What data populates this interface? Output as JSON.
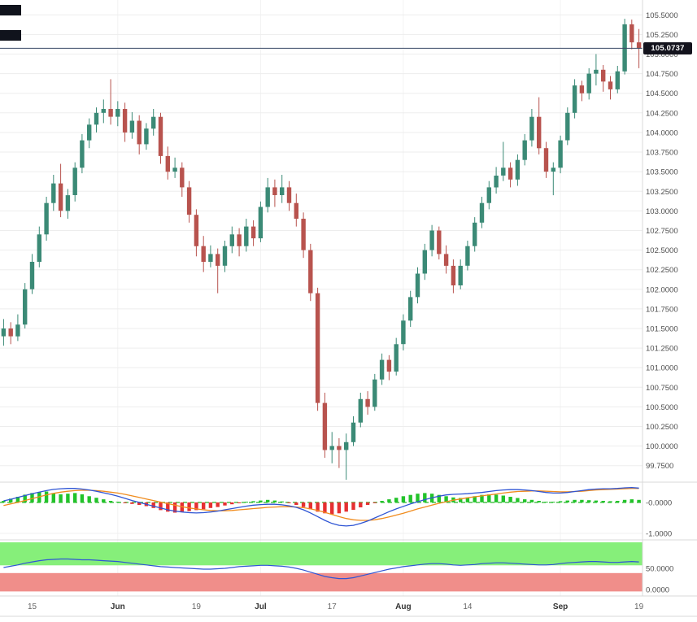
{
  "chart_data": {
    "type": "candlestick",
    "title": "",
    "colors": {
      "candle_up": "#3b8a76",
      "candle_down": "#b8534e",
      "hist_up": "#22c32a",
      "hist_down": "#e53030",
      "macd_line": "#2f55d4",
      "signal_line": "#f08c1e",
      "macd_zero": "#3dbb3d",
      "osc_line": "#2f55d4",
      "green_band": "#86ef7a",
      "red_band": "#f08e8a",
      "price_line": "#3a4a66",
      "grid": "#ededed"
    },
    "price_axis": {
      "min": 99.55,
      "max": 105.69,
      "ticks": [
        "105.5000",
        "105.2500",
        "105.0000",
        "104.7500",
        "104.5000",
        "104.2500",
        "104.0000",
        "103.7500",
        "103.5000",
        "103.2500",
        "103.0000",
        "102.7500",
        "102.5000",
        "102.2500",
        "102.0000",
        "101.7500",
        "101.5000",
        "101.2500",
        "101.0000",
        "100.7500",
        "100.5000",
        "100.2500",
        "100.0000",
        "99.7500"
      ]
    },
    "current_price": {
      "value": 105.0737,
      "label": "105.0737"
    },
    "time_axis": {
      "ticks": [
        {
          "i": 4,
          "label": "15",
          "major": false
        },
        {
          "i": 16,
          "label": "Jun",
          "major": true
        },
        {
          "i": 27,
          "label": "19",
          "major": false
        },
        {
          "i": 36,
          "label": "Jul",
          "major": true
        },
        {
          "i": 46,
          "label": "17",
          "major": false
        },
        {
          "i": 56,
          "label": "Aug",
          "major": true
        },
        {
          "i": 65,
          "label": "14",
          "major": false
        },
        {
          "i": 78,
          "label": "Sep",
          "major": true
        },
        {
          "i": 89,
          "label": "19",
          "major": false
        }
      ]
    },
    "candles": [
      [
        101.4,
        101.62,
        101.28,
        101.5
      ],
      [
        101.5,
        101.58,
        101.3,
        101.4
      ],
      [
        101.4,
        101.68,
        101.34,
        101.55
      ],
      [
        101.55,
        102.08,
        101.5,
        102.0
      ],
      [
        102.0,
        102.45,
        101.94,
        102.35
      ],
      [
        102.35,
        102.8,
        102.28,
        102.7
      ],
      [
        102.7,
        103.18,
        102.62,
        103.1
      ],
      [
        103.1,
        103.46,
        103.0,
        103.35
      ],
      [
        103.35,
        103.6,
        102.92,
        103.0
      ],
      [
        103.0,
        103.28,
        102.9,
        103.2
      ],
      [
        103.2,
        103.62,
        103.12,
        103.55
      ],
      [
        103.55,
        103.98,
        103.48,
        103.9
      ],
      [
        103.9,
        104.18,
        103.8,
        104.1
      ],
      [
        104.1,
        104.32,
        104.0,
        104.25
      ],
      [
        104.25,
        104.42,
        104.12,
        104.3
      ],
      [
        104.3,
        104.68,
        104.1,
        104.2
      ],
      [
        104.2,
        104.4,
        104.08,
        104.3
      ],
      [
        104.3,
        104.38,
        103.88,
        104.0
      ],
      [
        104.0,
        104.26,
        103.92,
        104.15
      ],
      [
        104.15,
        104.22,
        103.72,
        103.85
      ],
      [
        103.85,
        104.12,
        103.78,
        104.05
      ],
      [
        104.05,
        104.3,
        103.96,
        104.2
      ],
      [
        104.2,
        104.25,
        103.6,
        103.7
      ],
      [
        103.7,
        103.82,
        103.4,
        103.5
      ],
      [
        103.5,
        103.68,
        103.42,
        103.55
      ],
      [
        103.55,
        103.62,
        103.18,
        103.3
      ],
      [
        103.3,
        103.38,
        102.85,
        102.95
      ],
      [
        102.95,
        103.02,
        102.42,
        102.55
      ],
      [
        102.55,
        102.68,
        102.22,
        102.35
      ],
      [
        102.35,
        102.56,
        102.28,
        102.45
      ],
      [
        102.45,
        102.52,
        101.95,
        102.3
      ],
      [
        102.3,
        102.62,
        102.22,
        102.55
      ],
      [
        102.55,
        102.8,
        102.46,
        102.7
      ],
      [
        102.7,
        102.78,
        102.42,
        102.55
      ],
      [
        102.55,
        102.9,
        102.48,
        102.8
      ],
      [
        102.8,
        102.88,
        102.55,
        102.65
      ],
      [
        102.65,
        103.12,
        102.6,
        103.05
      ],
      [
        103.05,
        103.42,
        102.98,
        103.3
      ],
      [
        103.3,
        103.4,
        103.05,
        103.2
      ],
      [
        103.2,
        103.46,
        103.1,
        103.3
      ],
      [
        103.3,
        103.38,
        103.0,
        103.1
      ],
      [
        103.1,
        103.22,
        102.8,
        102.9
      ],
      [
        102.9,
        102.98,
        102.4,
        102.5
      ],
      [
        102.5,
        102.58,
        101.85,
        101.95
      ],
      [
        101.95,
        102.02,
        100.45,
        100.55
      ],
      [
        100.55,
        100.68,
        99.85,
        99.95
      ],
      [
        99.95,
        100.18,
        99.78,
        100.0
      ],
      [
        100.0,
        100.1,
        99.72,
        99.95
      ],
      [
        99.95,
        100.16,
        99.57,
        100.05
      ],
      [
        100.05,
        100.38,
        100.0,
        100.3
      ],
      [
        100.3,
        100.68,
        100.24,
        100.6
      ],
      [
        100.6,
        100.7,
        100.4,
        100.5
      ],
      [
        100.5,
        100.92,
        100.45,
        100.85
      ],
      [
        100.85,
        101.18,
        100.78,
        101.1
      ],
      [
        101.1,
        101.16,
        100.84,
        100.95
      ],
      [
        100.95,
        101.38,
        100.9,
        101.3
      ],
      [
        101.3,
        101.68,
        101.22,
        101.6
      ],
      [
        101.6,
        101.98,
        101.52,
        101.9
      ],
      [
        101.9,
        102.28,
        101.82,
        102.2
      ],
      [
        102.2,
        102.58,
        102.12,
        102.5
      ],
      [
        102.5,
        102.82,
        102.42,
        102.75
      ],
      [
        102.75,
        102.8,
        102.38,
        102.45
      ],
      [
        102.45,
        102.56,
        102.2,
        102.3
      ],
      [
        102.3,
        102.38,
        101.95,
        102.05
      ],
      [
        102.05,
        102.38,
        102.0,
        102.3
      ],
      [
        102.3,
        102.62,
        102.24,
        102.55
      ],
      [
        102.55,
        102.92,
        102.48,
        102.85
      ],
      [
        102.85,
        103.18,
        102.78,
        103.1
      ],
      [
        103.1,
        103.38,
        103.02,
        103.3
      ],
      [
        103.3,
        103.56,
        103.22,
        103.45
      ],
      [
        103.45,
        103.88,
        103.38,
        103.55
      ],
      [
        103.55,
        103.62,
        103.3,
        103.4
      ],
      [
        103.4,
        103.72,
        103.32,
        103.65
      ],
      [
        103.65,
        103.98,
        103.58,
        103.9
      ],
      [
        103.9,
        104.3,
        103.82,
        104.2
      ],
      [
        104.2,
        104.45,
        103.72,
        103.8
      ],
      [
        103.8,
        103.88,
        103.42,
        103.5
      ],
      [
        103.5,
        103.62,
        103.2,
        103.55
      ],
      [
        103.55,
        103.96,
        103.48,
        103.9
      ],
      [
        103.9,
        104.32,
        103.84,
        104.25
      ],
      [
        104.25,
        104.68,
        104.18,
        104.6
      ],
      [
        104.6,
        104.66,
        104.4,
        104.5
      ],
      [
        104.5,
        104.82,
        104.42,
        104.75
      ],
      [
        104.75,
        105.0,
        104.6,
        104.8
      ],
      [
        104.8,
        104.86,
        104.52,
        104.65
      ],
      [
        104.65,
        104.72,
        104.42,
        104.55
      ],
      [
        104.55,
        104.85,
        104.5,
        104.78
      ],
      [
        104.78,
        105.45,
        104.74,
        105.38
      ],
      [
        105.38,
        105.44,
        105.06,
        105.15
      ],
      [
        105.15,
        105.32,
        104.82,
        105.07
      ]
    ],
    "macd": {
      "min": -1.13,
      "max": 0.6,
      "ticks": [
        {
          "value": 0,
          "label": "-0.0000"
        },
        {
          "value": -1,
          "label": "-1.0000"
        }
      ],
      "histogram": [
        0.05,
        0.12,
        0.18,
        0.25,
        0.3,
        0.33,
        0.35,
        0.3,
        0.26,
        0.28,
        0.3,
        0.26,
        0.2,
        0.15,
        0.1,
        0.05,
        0.02,
        -0.02,
        -0.05,
        -0.08,
        -0.12,
        -0.18,
        -0.25,
        -0.3,
        -0.33,
        -0.3,
        -0.28,
        -0.25,
        -0.22,
        -0.18,
        -0.15,
        -0.1,
        -0.06,
        -0.03,
        0.02,
        0.04,
        0.06,
        0.08,
        0.06,
        0.03,
        -0.02,
        -0.08,
        -0.15,
        -0.22,
        -0.3,
        -0.35,
        -0.38,
        -0.35,
        -0.3,
        -0.24,
        -0.16,
        -0.08,
        -0.02,
        0.05,
        0.1,
        0.15,
        0.2,
        0.24,
        0.28,
        0.3,
        0.28,
        0.24,
        0.2,
        0.16,
        0.14,
        0.16,
        0.2,
        0.24,
        0.26,
        0.25,
        0.22,
        0.18,
        0.14,
        0.1,
        0.08,
        0.05,
        0.02,
        0.02,
        0.04,
        0.06,
        0.08,
        0.08,
        0.07,
        0.06,
        0.05,
        0.04,
        0.05,
        0.08,
        0.1,
        0.08
      ],
      "macd_line": [
        0.05,
        0.1,
        0.16,
        0.22,
        0.28,
        0.33,
        0.38,
        0.42,
        0.44,
        0.45,
        0.45,
        0.43,
        0.4,
        0.36,
        0.31,
        0.26,
        0.2,
        0.13,
        0.06,
        0.0,
        -0.06,
        -0.12,
        -0.18,
        -0.24,
        -0.28,
        -0.31,
        -0.33,
        -0.34,
        -0.33,
        -0.31,
        -0.28,
        -0.24,
        -0.2,
        -0.16,
        -0.12,
        -0.09,
        -0.07,
        -0.06,
        -0.06,
        -0.08,
        -0.11,
        -0.16,
        -0.24,
        -0.34,
        -0.46,
        -0.58,
        -0.68,
        -0.74,
        -0.76,
        -0.74,
        -0.68,
        -0.6,
        -0.5,
        -0.4,
        -0.3,
        -0.21,
        -0.13,
        -0.05,
        0.02,
        0.09,
        0.15,
        0.2,
        0.24,
        0.26,
        0.27,
        0.28,
        0.3,
        0.32,
        0.35,
        0.38,
        0.4,
        0.41,
        0.41,
        0.4,
        0.38,
        0.35,
        0.32,
        0.3,
        0.3,
        0.32,
        0.35,
        0.38,
        0.41,
        0.43,
        0.44,
        0.44,
        0.45,
        0.47,
        0.48,
        0.46
      ],
      "signal_line": [
        -0.1,
        -0.05,
        0.0,
        0.06,
        0.12,
        0.18,
        0.24,
        0.29,
        0.33,
        0.36,
        0.38,
        0.39,
        0.39,
        0.38,
        0.36,
        0.33,
        0.3,
        0.26,
        0.21,
        0.16,
        0.11,
        0.06,
        0.01,
        -0.04,
        -0.09,
        -0.14,
        -0.18,
        -0.21,
        -0.24,
        -0.26,
        -0.27,
        -0.27,
        -0.26,
        -0.24,
        -0.22,
        -0.2,
        -0.18,
        -0.16,
        -0.15,
        -0.14,
        -0.14,
        -0.15,
        -0.17,
        -0.21,
        -0.26,
        -0.32,
        -0.39,
        -0.46,
        -0.52,
        -0.56,
        -0.58,
        -0.58,
        -0.56,
        -0.52,
        -0.47,
        -0.41,
        -0.35,
        -0.28,
        -0.21,
        -0.15,
        -0.09,
        -0.03,
        0.02,
        0.07,
        0.11,
        0.15,
        0.18,
        0.21,
        0.24,
        0.27,
        0.3,
        0.33,
        0.35,
        0.36,
        0.37,
        0.37,
        0.36,
        0.35,
        0.34,
        0.34,
        0.35,
        0.36,
        0.38,
        0.4,
        0.41,
        0.42,
        0.43,
        0.44,
        0.45,
        0.45
      ]
    },
    "oscillator": {
      "min": -11,
      "max": 111,
      "ticks": [
        {
          "value": 50,
          "label": "50.0000"
        },
        {
          "value": 0,
          "label": "0.0000"
        }
      ],
      "green_band": [
        57,
        111
      ],
      "red_band": [
        -4,
        39
      ],
      "values": [
        52,
        55,
        58,
        62,
        65,
        68,
        70,
        71,
        72,
        72,
        71,
        70,
        70,
        69,
        68,
        67,
        66,
        64,
        62,
        60,
        58,
        56,
        54,
        53,
        52,
        51,
        50,
        49,
        48,
        48,
        49,
        50,
        52,
        54,
        55,
        56,
        57,
        57,
        56,
        55,
        53,
        50,
        46,
        41,
        36,
        31,
        28,
        26,
        26,
        28,
        32,
        36,
        40,
        44,
        48,
        51,
        54,
        56,
        58,
        60,
        61,
        61,
        60,
        58,
        57,
        58,
        59,
        61,
        62,
        63,
        63,
        62,
        61,
        60,
        59,
        58,
        58,
        59,
        61,
        63,
        64,
        65,
        66,
        66,
        65,
        64,
        64,
        65,
        66,
        65
      ]
    }
  }
}
